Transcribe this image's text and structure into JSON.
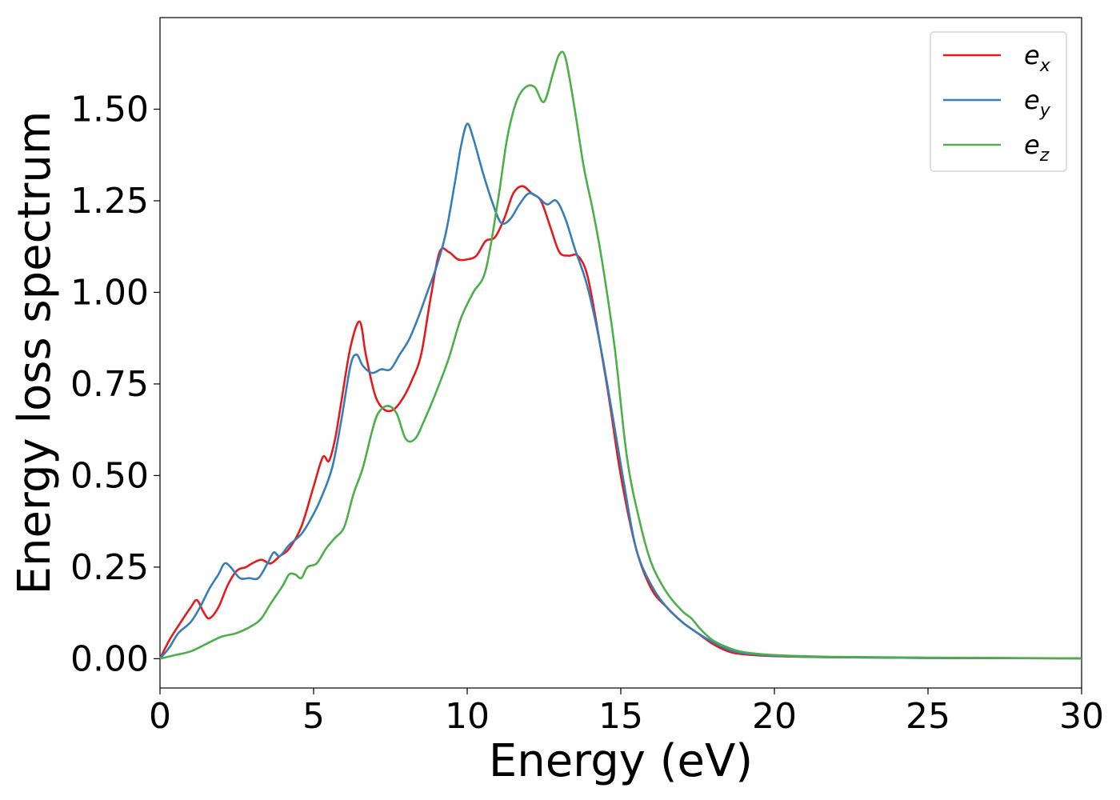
{
  "chart_data": {
    "type": "line",
    "title": "",
    "xlabel": "Energy (eV)",
    "ylabel": "Energy loss spectrum",
    "xlim": [
      0,
      30
    ],
    "ylim": [
      -0.08,
      1.75
    ],
    "xticks": [
      0,
      5,
      10,
      15,
      20,
      25,
      30
    ],
    "xtick_labels": [
      "0",
      "5",
      "10",
      "15",
      "20",
      "25",
      "30"
    ],
    "yticks": [
      0,
      0.25,
      0.5,
      0.75,
      1.0,
      1.25,
      1.5
    ],
    "ytick_labels": [
      "0.00",
      "0.25",
      "0.50",
      "0.75",
      "1.00",
      "1.25",
      "1.50"
    ],
    "grid": false,
    "legend_position": "top-right",
    "series": [
      {
        "name": "e_x",
        "legend_base": "e",
        "legend_sub": "x",
        "color": "#e41a1c",
        "x": [
          0,
          0.3,
          0.6,
          1.0,
          1.2,
          1.4,
          1.6,
          1.9,
          2.2,
          2.5,
          2.8,
          3.0,
          3.3,
          3.6,
          3.9,
          4.2,
          4.6,
          5.0,
          5.3,
          5.5,
          5.7,
          5.9,
          6.2,
          6.5,
          6.7,
          7.0,
          7.3,
          7.6,
          7.9,
          8.2,
          8.5,
          8.8,
          9.1,
          9.4,
          9.7,
          10.0,
          10.3,
          10.6,
          10.9,
          11.2,
          11.5,
          11.8,
          12.1,
          12.4,
          12.7,
          13.0,
          13.3,
          13.6,
          13.9,
          14.2,
          14.6,
          15.0,
          15.5,
          16.0,
          16.5,
          17.0,
          17.5,
          18.0,
          18.5,
          19.0,
          20.0,
          22.0,
          25.0,
          30.0
        ],
        "y": [
          0.0,
          0.05,
          0.09,
          0.14,
          0.16,
          0.13,
          0.11,
          0.14,
          0.2,
          0.24,
          0.25,
          0.26,
          0.27,
          0.26,
          0.28,
          0.3,
          0.36,
          0.47,
          0.55,
          0.54,
          0.6,
          0.7,
          0.85,
          0.92,
          0.83,
          0.72,
          0.68,
          0.68,
          0.71,
          0.76,
          0.83,
          0.98,
          1.11,
          1.11,
          1.09,
          1.09,
          1.1,
          1.14,
          1.15,
          1.2,
          1.27,
          1.29,
          1.27,
          1.25,
          1.18,
          1.11,
          1.1,
          1.1,
          1.05,
          0.92,
          0.72,
          0.5,
          0.3,
          0.19,
          0.14,
          0.1,
          0.07,
          0.04,
          0.02,
          0.012,
          0.007,
          0.004,
          0.002,
          0.001
        ]
      },
      {
        "name": "e_y",
        "legend_base": "e",
        "legend_sub": "y",
        "color": "#377eb8",
        "x": [
          0,
          0.3,
          0.6,
          1.0,
          1.3,
          1.6,
          1.9,
          2.1,
          2.3,
          2.6,
          2.9,
          3.2,
          3.5,
          3.7,
          3.9,
          4.2,
          4.6,
          4.9,
          5.2,
          5.6,
          5.9,
          6.2,
          6.4,
          6.6,
          6.9,
          7.2,
          7.5,
          7.8,
          8.1,
          8.4,
          8.7,
          9.0,
          9.3,
          9.6,
          9.8,
          10.0,
          10.2,
          10.5,
          10.8,
          11.1,
          11.4,
          11.7,
          12.0,
          12.3,
          12.6,
          12.9,
          13.2,
          13.5,
          13.9,
          14.3,
          14.7,
          15.1,
          15.5,
          16.0,
          16.5,
          17.0,
          17.5,
          18.0,
          18.5,
          19.0,
          20.0,
          22.0,
          25.0,
          30.0
        ],
        "y": [
          0.0,
          0.03,
          0.07,
          0.1,
          0.14,
          0.19,
          0.23,
          0.26,
          0.25,
          0.22,
          0.22,
          0.22,
          0.26,
          0.29,
          0.28,
          0.31,
          0.34,
          0.38,
          0.43,
          0.52,
          0.65,
          0.8,
          0.83,
          0.8,
          0.78,
          0.79,
          0.79,
          0.83,
          0.87,
          0.93,
          1.0,
          1.07,
          1.16,
          1.3,
          1.4,
          1.46,
          1.42,
          1.33,
          1.25,
          1.19,
          1.2,
          1.24,
          1.27,
          1.26,
          1.24,
          1.25,
          1.2,
          1.12,
          1.02,
          0.87,
          0.68,
          0.48,
          0.3,
          0.2,
          0.14,
          0.1,
          0.07,
          0.045,
          0.025,
          0.015,
          0.008,
          0.004,
          0.002,
          0.001
        ]
      },
      {
        "name": "e_z",
        "legend_base": "e",
        "legend_sub": "z",
        "color": "#4daf4a",
        "x": [
          0,
          0.5,
          1.0,
          1.5,
          2.0,
          2.5,
          3.0,
          3.3,
          3.6,
          4.0,
          4.2,
          4.4,
          4.6,
          4.8,
          5.1,
          5.4,
          5.7,
          6.0,
          6.3,
          6.6,
          6.9,
          7.1,
          7.4,
          7.7,
          8.0,
          8.3,
          8.6,
          9.0,
          9.4,
          9.8,
          10.2,
          10.6,
          11.0,
          11.3,
          11.6,
          11.9,
          12.2,
          12.5,
          12.8,
          13.0,
          13.2,
          13.5,
          13.8,
          14.1,
          14.4,
          14.8,
          15.2,
          15.6,
          16.0,
          16.5,
          17.0,
          17.3,
          17.6,
          18.0,
          18.5,
          19.0,
          20.0,
          22.0,
          25.0,
          30.0
        ],
        "y": [
          0.0,
          0.01,
          0.02,
          0.04,
          0.06,
          0.07,
          0.09,
          0.11,
          0.15,
          0.2,
          0.23,
          0.23,
          0.22,
          0.25,
          0.26,
          0.3,
          0.33,
          0.36,
          0.45,
          0.52,
          0.62,
          0.67,
          0.69,
          0.67,
          0.6,
          0.6,
          0.65,
          0.73,
          0.82,
          0.93,
          1.0,
          1.06,
          1.25,
          1.42,
          1.52,
          1.56,
          1.56,
          1.52,
          1.6,
          1.65,
          1.64,
          1.5,
          1.34,
          1.22,
          1.08,
          0.85,
          0.55,
          0.38,
          0.26,
          0.18,
          0.13,
          0.11,
          0.08,
          0.05,
          0.03,
          0.018,
          0.01,
          0.005,
          0.003,
          0.001
        ]
      }
    ]
  }
}
